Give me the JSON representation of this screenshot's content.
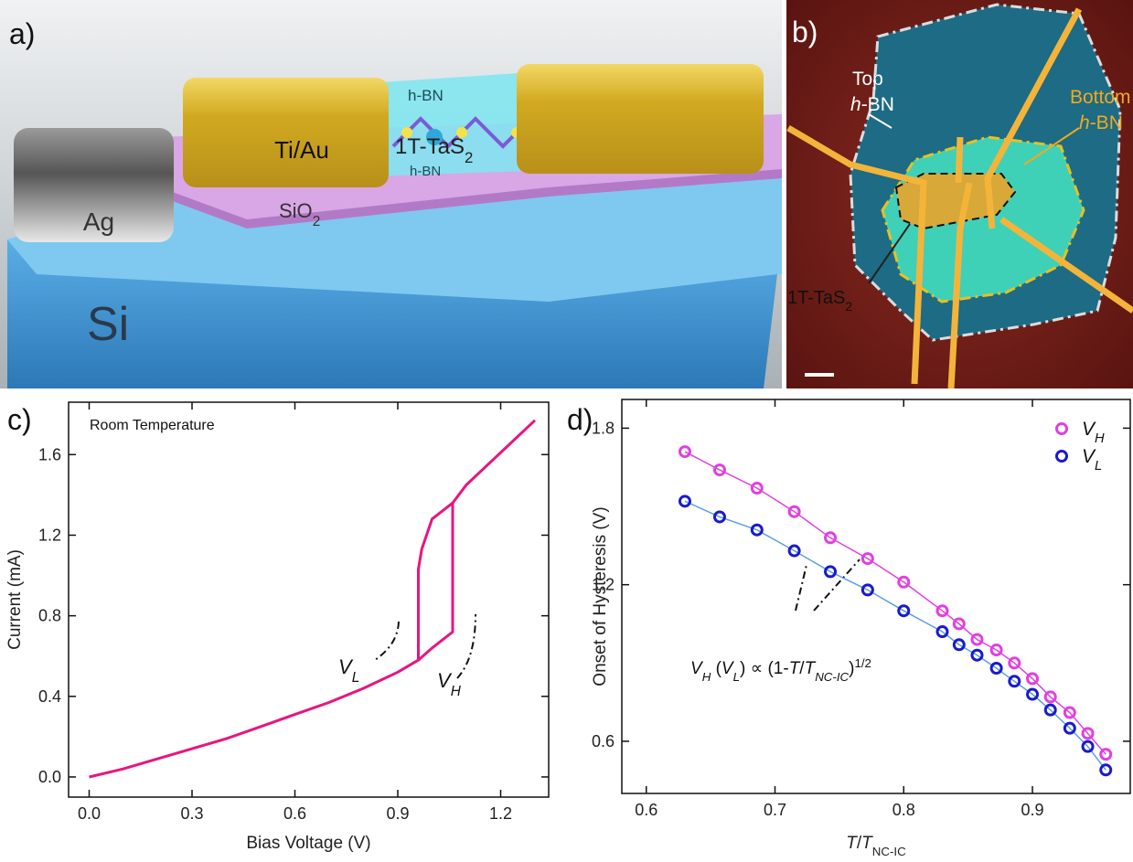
{
  "figure": {
    "panel_a": {
      "label": "a)",
      "hbn_top": "h-BN",
      "tas2": [
        {
          "text": "1T-TaS"
        },
        {
          "text": "2",
          "sub": true
        }
      ],
      "hbn_bottom": "h-BN",
      "contact": "Ti/Au",
      "oxide": [
        {
          "text": "SiO"
        },
        {
          "text": "2",
          "sub": true
        }
      ],
      "ag": "Ag",
      "si": "Si"
    },
    "panel_b": {
      "label": "b)",
      "top_1": "Top",
      "top_2": [
        {
          "text": "h",
          "italic": true
        },
        {
          "text": "-BN"
        }
      ],
      "bottom_1": "Bottom",
      "bottom_2": [
        {
          "text": "h",
          "italic": true
        },
        {
          "text": "-BN"
        }
      ],
      "tas2": [
        {
          "text": "1T-TaS"
        },
        {
          "text": "2",
          "sub": true
        }
      ]
    }
  },
  "chart_data": [
    {
      "type": "line",
      "label": "c)",
      "annotation": "Room Temperature",
      "x_label": "Bias Voltage (V)",
      "y_label": "Current (mA)",
      "xlim": [
        -0.06,
        1.34
      ],
      "ylim": [
        -0.1,
        1.86
      ],
      "xticks": [
        {
          "value": 0,
          "label": "0.0"
        },
        0.3,
        0.6,
        0.9,
        1.2
      ],
      "yticks": [
        {
          "value": 0,
          "label": "0.0"
        },
        0.4,
        0.8,
        1.2,
        1.6
      ],
      "series": [
        {
          "color": "#e8157f",
          "x": [
            0,
            0.1,
            0.2,
            0.3,
            0.4,
            0.5,
            0.6,
            0.7,
            0.8,
            0.9,
            0.96,
            1.0,
            1.06,
            1.06,
            1.1,
            1.2,
            1.3
          ],
          "values": [
            0,
            0.04,
            0.09,
            0.14,
            0.19,
            0.25,
            0.31,
            0.37,
            0.44,
            0.52,
            0.58,
            0.64,
            0.72,
            1.36,
            1.45,
            1.61,
            1.77
          ]
        },
        {
          "color": "#e8157f",
          "x": [
            1.06,
            1.0,
            0.97,
            0.96,
            0.96
          ],
          "values": [
            1.36,
            1.28,
            1.13,
            1.03,
            0.58
          ]
        }
      ],
      "label_vl": [
        {
          "text": "V",
          "italic": true
        },
        {
          "text": "L",
          "italic": true,
          "sub": true
        }
      ],
      "label_vh": [
        {
          "text": "V",
          "italic": true
        },
        {
          "text": "H",
          "italic": true,
          "sub": true
        }
      ]
    },
    {
      "type": "scatter",
      "label": "d)",
      "fit_line": true,
      "x_label": [
        {
          "text": "T",
          "italic": true
        },
        {
          "text": "/"
        },
        {
          "text": "T",
          "italic": true
        },
        {
          "text": "NC-IC",
          "sub": true
        }
      ],
      "y_label": "Onset of Hysteresis (V)",
      "xlim": [
        0.581,
        0.976
      ],
      "ylim": [
        0.4,
        1.91
      ],
      "xticks": [
        0.6,
        0.7,
        0.8,
        0.9
      ],
      "yticks": [
        0.6,
        1.2,
        1.8
      ],
      "legend": "upper right",
      "series": [
        {
          "name": [
            {
              "text": "V",
              "italic": true
            },
            {
              "text": "H",
              "italic": true,
              "sub": true
            }
          ],
          "color": "#e040e0",
          "line_color": "#e040e0",
          "x": [
            0.63,
            0.657,
            0.686,
            0.715,
            0.743,
            0.772,
            0.8,
            0.83,
            0.843,
            0.857,
            0.872,
            0.886,
            0.9,
            0.914,
            0.929,
            0.943,
            0.957
          ],
          "values": [
            1.71,
            1.64,
            1.57,
            1.48,
            1.38,
            1.3,
            1.21,
            1.1,
            1.05,
            0.99,
            0.95,
            0.9,
            0.84,
            0.77,
            0.71,
            0.63,
            0.55
          ]
        },
        {
          "name": [
            {
              "text": "V",
              "italic": true
            },
            {
              "text": "L",
              "italic": true,
              "sub": true
            }
          ],
          "color": "#1a1acc",
          "line_color": "#5a9fe0",
          "x": [
            0.63,
            0.657,
            0.686,
            0.715,
            0.743,
            0.772,
            0.8,
            0.83,
            0.843,
            0.857,
            0.872,
            0.886,
            0.9,
            0.914,
            0.929,
            0.943,
            0.957
          ],
          "values": [
            1.52,
            1.46,
            1.41,
            1.33,
            1.25,
            1.18,
            1.1,
            1.02,
            0.97,
            0.93,
            0.88,
            0.83,
            0.78,
            0.72,
            0.65,
            0.58,
            0.49
          ]
        }
      ],
      "annotation": [
        {
          "text": "V",
          "italic": true
        },
        {
          "text": "H",
          "italic": true,
          "sub": true
        },
        {
          "text": " ("
        },
        {
          "text": "V",
          "italic": true
        },
        {
          "text": "L",
          "italic": true,
          "sub": true
        },
        {
          "text": ") ∝ (1-"
        },
        {
          "text": "T",
          "italic": true
        },
        {
          "text": "/"
        },
        {
          "text": "T",
          "italic": true
        },
        {
          "text": "NC-IC",
          "italic": true,
          "sub": true
        },
        {
          "text": ")"
        },
        {
          "text": "1/2",
          "sup": true
        }
      ]
    }
  ]
}
